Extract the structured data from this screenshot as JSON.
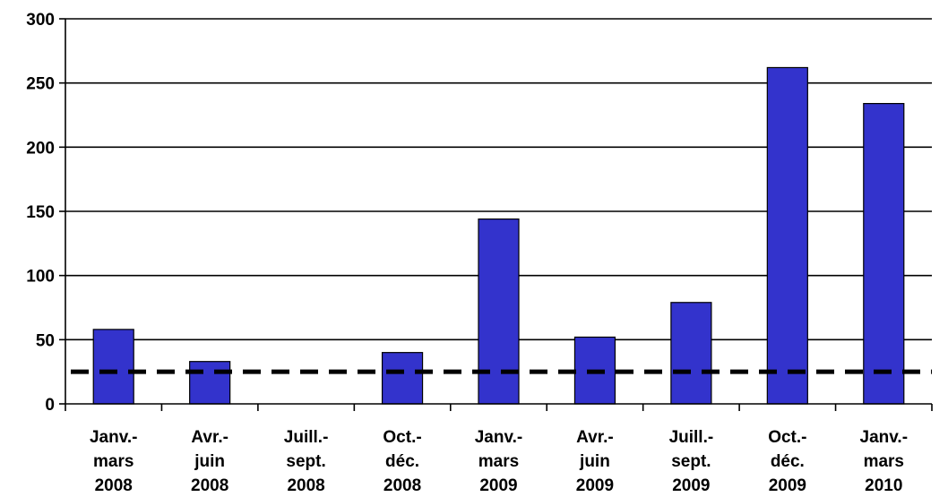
{
  "chart_data": {
    "type": "bar",
    "title": "",
    "xlabel": "",
    "ylabel": "",
    "ylim": [
      0,
      300
    ],
    "yticks": [
      0,
      50,
      100,
      150,
      200,
      250,
      300
    ],
    "grid": true,
    "categories": [
      [
        "Janv.-",
        "mars",
        "2008"
      ],
      [
        "Avr.-",
        "juin",
        "2008"
      ],
      [
        "Juill.-",
        "sept.",
        "2008"
      ],
      [
        "Oct.-",
        "déc.",
        "2008"
      ],
      [
        "Janv.-",
        "mars",
        "2009"
      ],
      [
        "Avr.-",
        "juin",
        "2009"
      ],
      [
        "Juill.-",
        "sept.",
        "2009"
      ],
      [
        "Oct.-",
        "déc.",
        "2009"
      ],
      [
        "Janv.-",
        "mars",
        "2010"
      ]
    ],
    "values": [
      58,
      33,
      0,
      40,
      144,
      52,
      79,
      262,
      234
    ],
    "reference_line": {
      "value": 25,
      "style": "dashed"
    },
    "colors": {
      "bar": "#3333cc",
      "bar_stroke": "#000000",
      "grid": "#000000",
      "reference": "#000000"
    }
  }
}
